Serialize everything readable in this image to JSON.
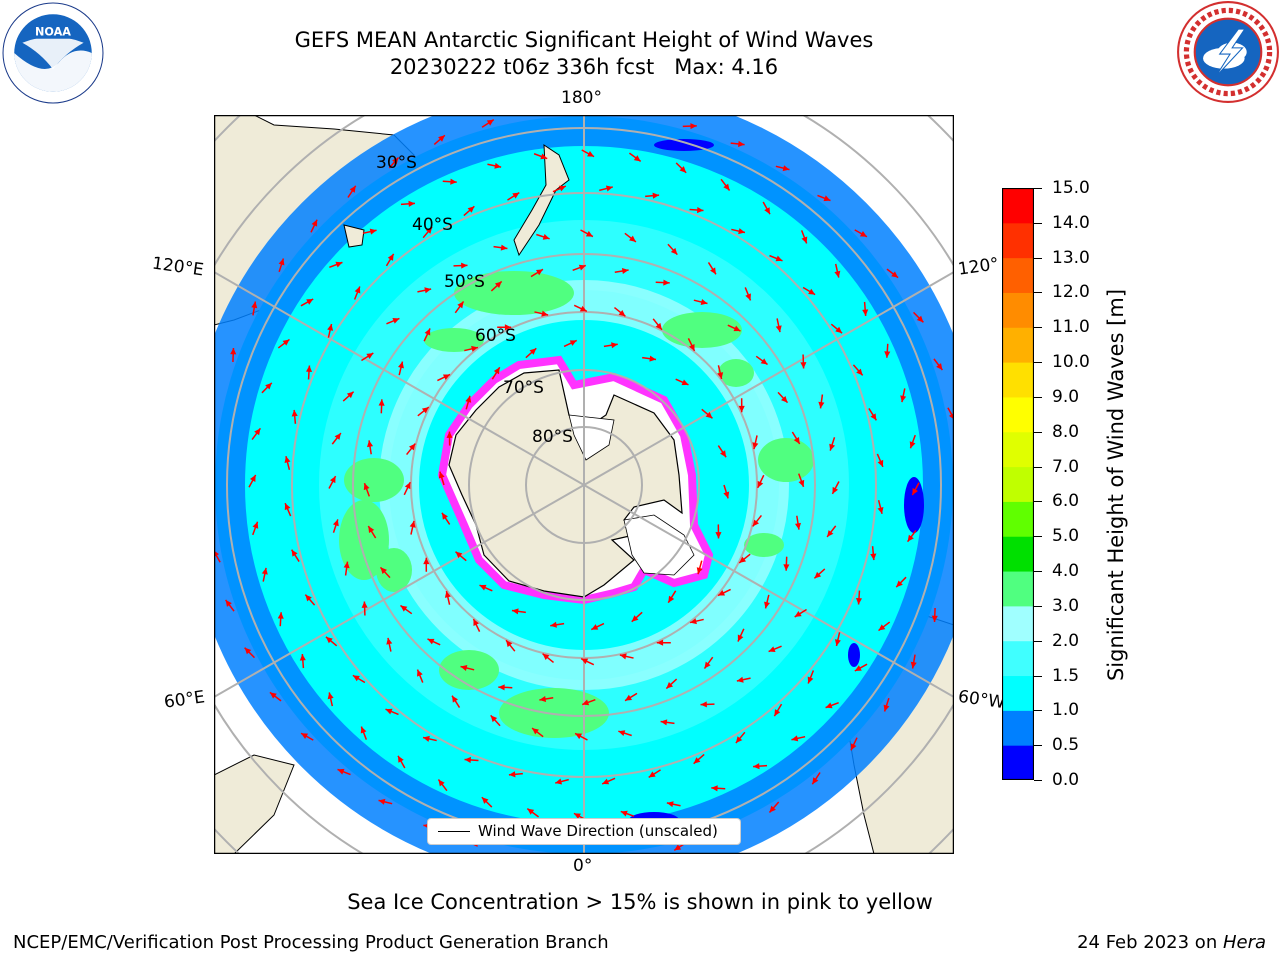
{
  "header": {
    "title_line1": "GEFS MEAN Antarctic Significant Height of Wind Waves",
    "title_line2": "20230222 t06z 336h fcst   Max: 4.16"
  },
  "logos": {
    "left": "noaa-logo",
    "right": "nws-logo"
  },
  "map": {
    "longitude_labels": {
      "top": "180°",
      "bottom": "0°",
      "upper_left": "120°E",
      "lower_left": "60°E",
      "upper_right": "120°",
      "lower_right": "60°W"
    },
    "latitude_labels": [
      "30°S",
      "40°S",
      "50°S",
      "60°S",
      "70°S",
      "80°S"
    ],
    "legend_label": "Wind Wave Direction (unscaled)",
    "colors": {
      "land": "#efebd8",
      "ice_edge": "#ff33ff",
      "arrow": "#ff0000",
      "gridline": "#b0b0b0"
    }
  },
  "colorbar": {
    "label": "Significant Height of Wind Waves [m]",
    "ticks": [
      "0.0",
      "0.5",
      "1.0",
      "1.5",
      "2.0",
      "3.0",
      "4.0",
      "5.0",
      "6.0",
      "7.0",
      "8.0",
      "9.0",
      "10.0",
      "11.0",
      "12.0",
      "13.0",
      "14.0",
      "15.0"
    ],
    "colors": [
      "#0000ff",
      "#0080ff",
      "#00ffff",
      "#40ffff",
      "#a0ffff",
      "#50ff80",
      "#00e000",
      "#60ff00",
      "#c0ff00",
      "#e0ff00",
      "#ffff00",
      "#ffe000",
      "#ffb000",
      "#ff8c00",
      "#ff6000",
      "#ff3000",
      "#ff0000"
    ]
  },
  "footer": {
    "sea_ice_note": "Sea Ice Concentration > 15% is shown in pink to yellow",
    "left": "NCEP/EMC/Verification Post Processing Product Generation Branch",
    "right_prefix": "24 Feb 2023 on ",
    "right_machine": "Hera"
  }
}
